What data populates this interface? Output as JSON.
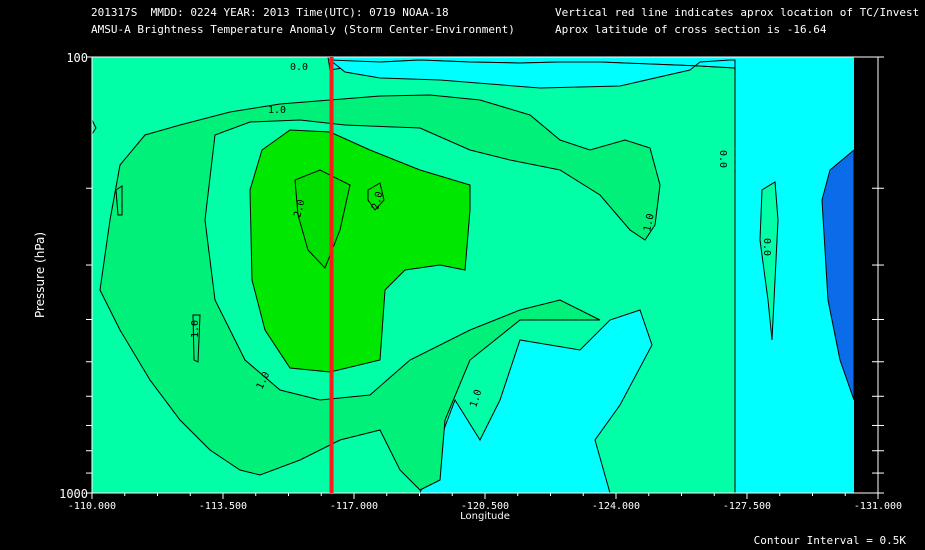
{
  "header": {
    "line1_left": "201317S  MMDD: 0224 YEAR: 2013 Time(UTC): 0719 NOAA-18",
    "line2_left": "AMSU-A Brightness Temperature Anomaly (Storm Center-Environment)",
    "line1_right": "Vertical red line indicates aprox location of TC/Invest",
    "line2_right": "Aprox latitude of cross section is -16.64"
  },
  "footer": {
    "contour_interval": "Contour Interval = 0.5K"
  },
  "chart_data": {
    "type": "heatmap",
    "xlabel": "Longitude",
    "ylabel": "Pressure (hPa)",
    "xlim": [
      -110.0,
      -131.0
    ],
    "ylim": [
      1000,
      100
    ],
    "y_scale": "log",
    "x_ticks": [
      "-110.000",
      "-113.500",
      "-117.000",
      "-120.500",
      "-124.000",
      "-127.500",
      "-131.000"
    ],
    "y_ticks": [
      "100",
      "1000"
    ],
    "storm_center_longitude": -116.4,
    "contour_labels": [
      "0.0",
      "1.0",
      "2.0",
      "2.0",
      "1.0",
      "1.0",
      "1.0",
      "1.0",
      "0.0",
      "0.0"
    ],
    "colors": {
      "below_0": "#0a6ce8",
      "0_to_1": "#00ffff",
      "1_to_1.5": "#00ffa6",
      "1.5_to_2": "#00f07a",
      "above_2": "#00e800",
      "storm_line": "#ff1a1a",
      "missing": "#000000"
    }
  }
}
